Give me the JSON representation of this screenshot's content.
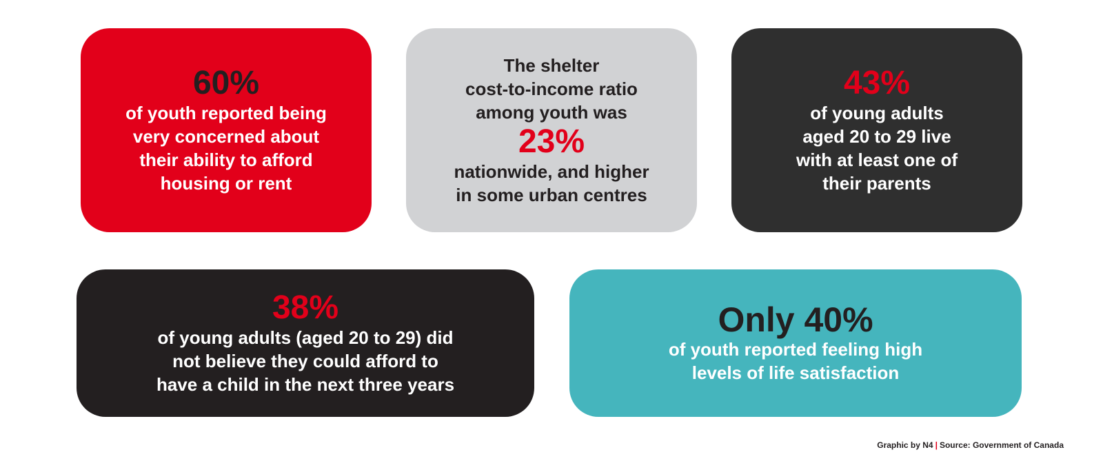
{
  "cards": [
    {
      "stat": "60%",
      "text_lines": [
        "of youth reported being",
        "very concerned about",
        "their ability to afford",
        "housing or rent"
      ]
    },
    {
      "lead_lines": [
        "The shelter",
        "cost-to-income ratio",
        "among youth was"
      ],
      "stat": "23%",
      "text_lines": [
        "nationwide, and higher",
        "in some urban centres"
      ]
    },
    {
      "stat": "43%",
      "text_lines": [
        "of young adults",
        "aged 20 to 29 live",
        "with at least one of",
        "their parents"
      ]
    },
    {
      "stat": "38%",
      "text_lines": [
        "of young adults (aged 20 to 29) did",
        "not believe they could afford to",
        "have a child in the next three years"
      ]
    },
    {
      "stat": "Only 40%",
      "text_lines": [
        "of youth reported feeling high",
        "levels of life satisfaction"
      ]
    }
  ],
  "footer": {
    "credit": "Graphic by N4",
    "separator": "|",
    "source": "Source: Government of Canada"
  }
}
